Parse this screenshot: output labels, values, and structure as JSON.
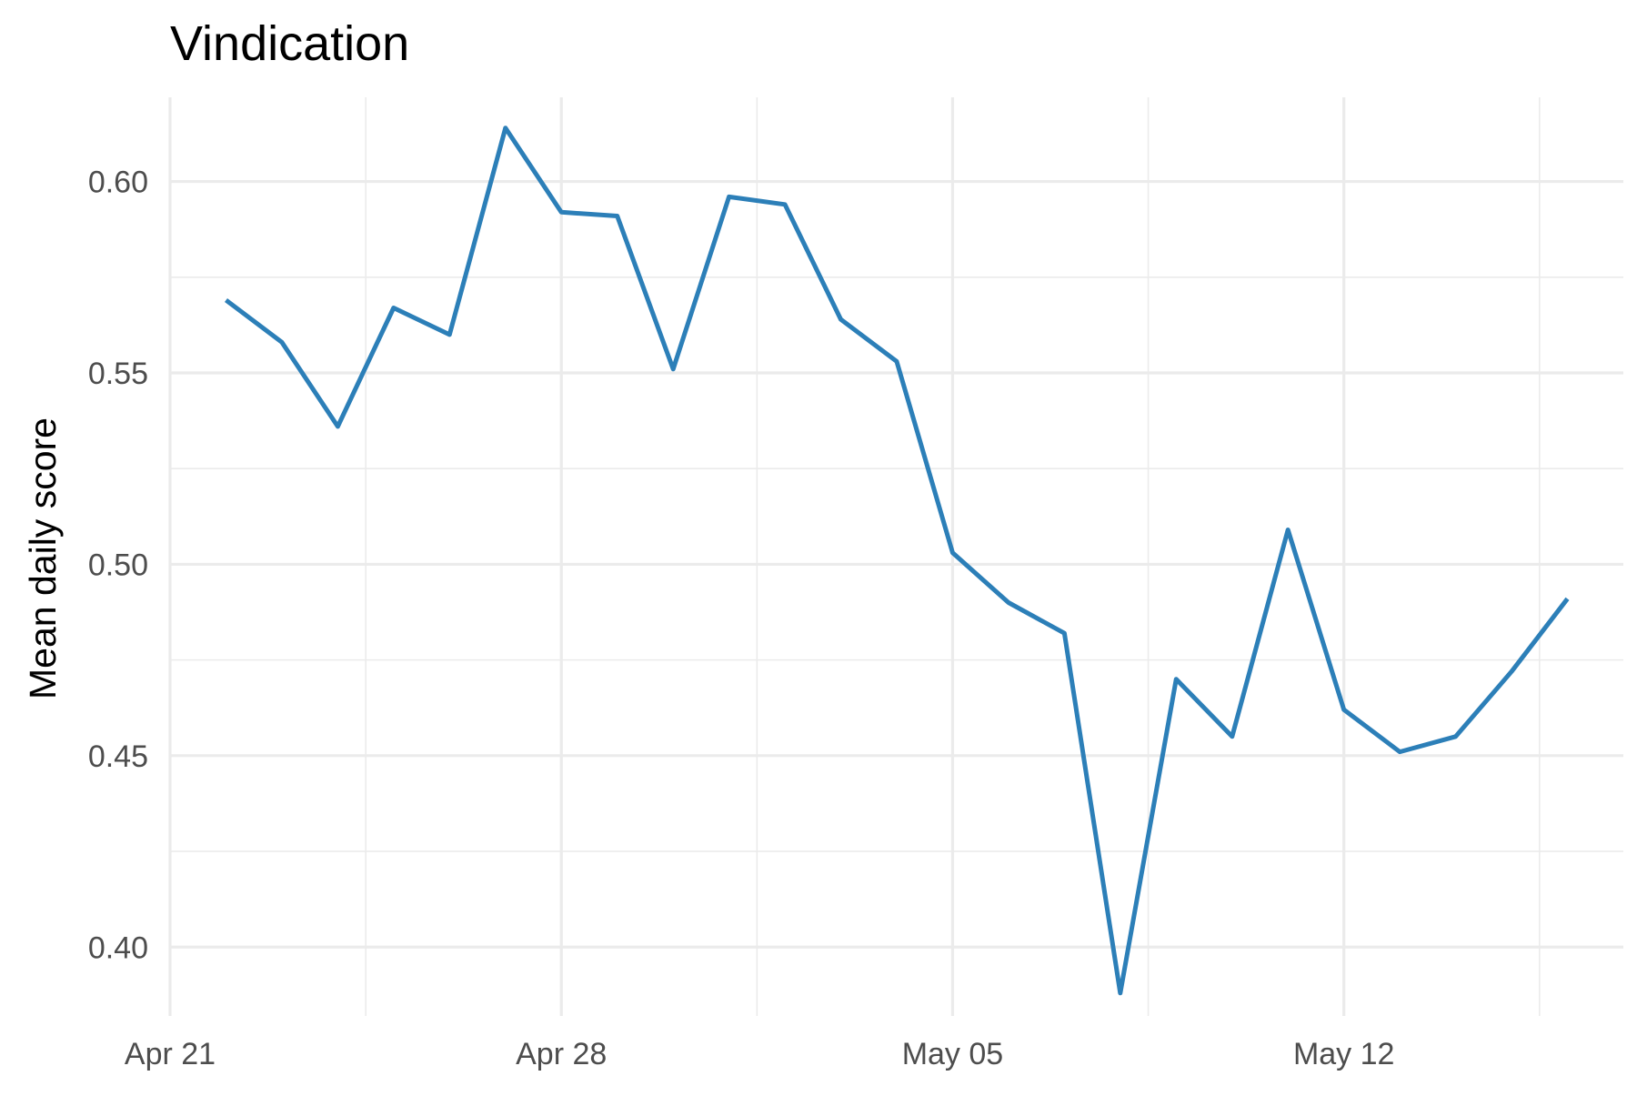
{
  "chart_data": {
    "type": "line",
    "title": "Vindication",
    "xlabel": "",
    "ylabel": "Mean daily score",
    "x_tick_labels": [
      {
        "date": "2024-04-21",
        "label": "Apr 21"
      },
      {
        "date": "2024-04-28",
        "label": "Apr 28"
      },
      {
        "date": "2024-05-05",
        "label": "May 05"
      },
      {
        "date": "2024-05-12",
        "label": "May 12"
      }
    ],
    "y_tick_labels": [
      {
        "value": 0.4,
        "label": "0.40"
      },
      {
        "value": 0.45,
        "label": "0.45"
      },
      {
        "value": 0.5,
        "label": "0.50"
      },
      {
        "value": 0.55,
        "label": "0.55"
      },
      {
        "value": 0.6,
        "label": "0.60"
      }
    ],
    "xlim": [
      "2024-04-21",
      "2024-05-17"
    ],
    "ylim": [
      0.382,
      0.622
    ],
    "grid": true,
    "legend": "none",
    "series": [
      {
        "color": "#2c7fb8",
        "points": [
          {
            "x": "2024-04-22",
            "y": 0.569
          },
          {
            "x": "2024-04-23",
            "y": 0.558
          },
          {
            "x": "2024-04-24",
            "y": 0.536
          },
          {
            "x": "2024-04-25",
            "y": 0.567
          },
          {
            "x": "2024-04-26",
            "y": 0.56
          },
          {
            "x": "2024-04-27",
            "y": 0.614
          },
          {
            "x": "2024-04-28",
            "y": 0.592
          },
          {
            "x": "2024-04-29",
            "y": 0.591
          },
          {
            "x": "2024-04-30",
            "y": 0.551
          },
          {
            "x": "2024-05-01",
            "y": 0.596
          },
          {
            "x": "2024-05-02",
            "y": 0.594
          },
          {
            "x": "2024-05-03",
            "y": 0.564
          },
          {
            "x": "2024-05-04",
            "y": 0.553
          },
          {
            "x": "2024-05-05",
            "y": 0.503
          },
          {
            "x": "2024-05-06",
            "y": 0.49
          },
          {
            "x": "2024-05-07",
            "y": 0.482
          },
          {
            "x": "2024-05-08",
            "y": 0.388
          },
          {
            "x": "2024-05-09",
            "y": 0.47
          },
          {
            "x": "2024-05-10",
            "y": 0.455
          },
          {
            "x": "2024-05-11",
            "y": 0.509
          },
          {
            "x": "2024-05-12",
            "y": 0.462
          },
          {
            "x": "2024-05-13",
            "y": 0.451
          },
          {
            "x": "2024-05-14",
            "y": 0.455
          },
          {
            "x": "2024-05-15",
            "y": 0.472
          },
          {
            "x": "2024-05-16",
            "y": 0.491
          }
        ]
      }
    ]
  }
}
